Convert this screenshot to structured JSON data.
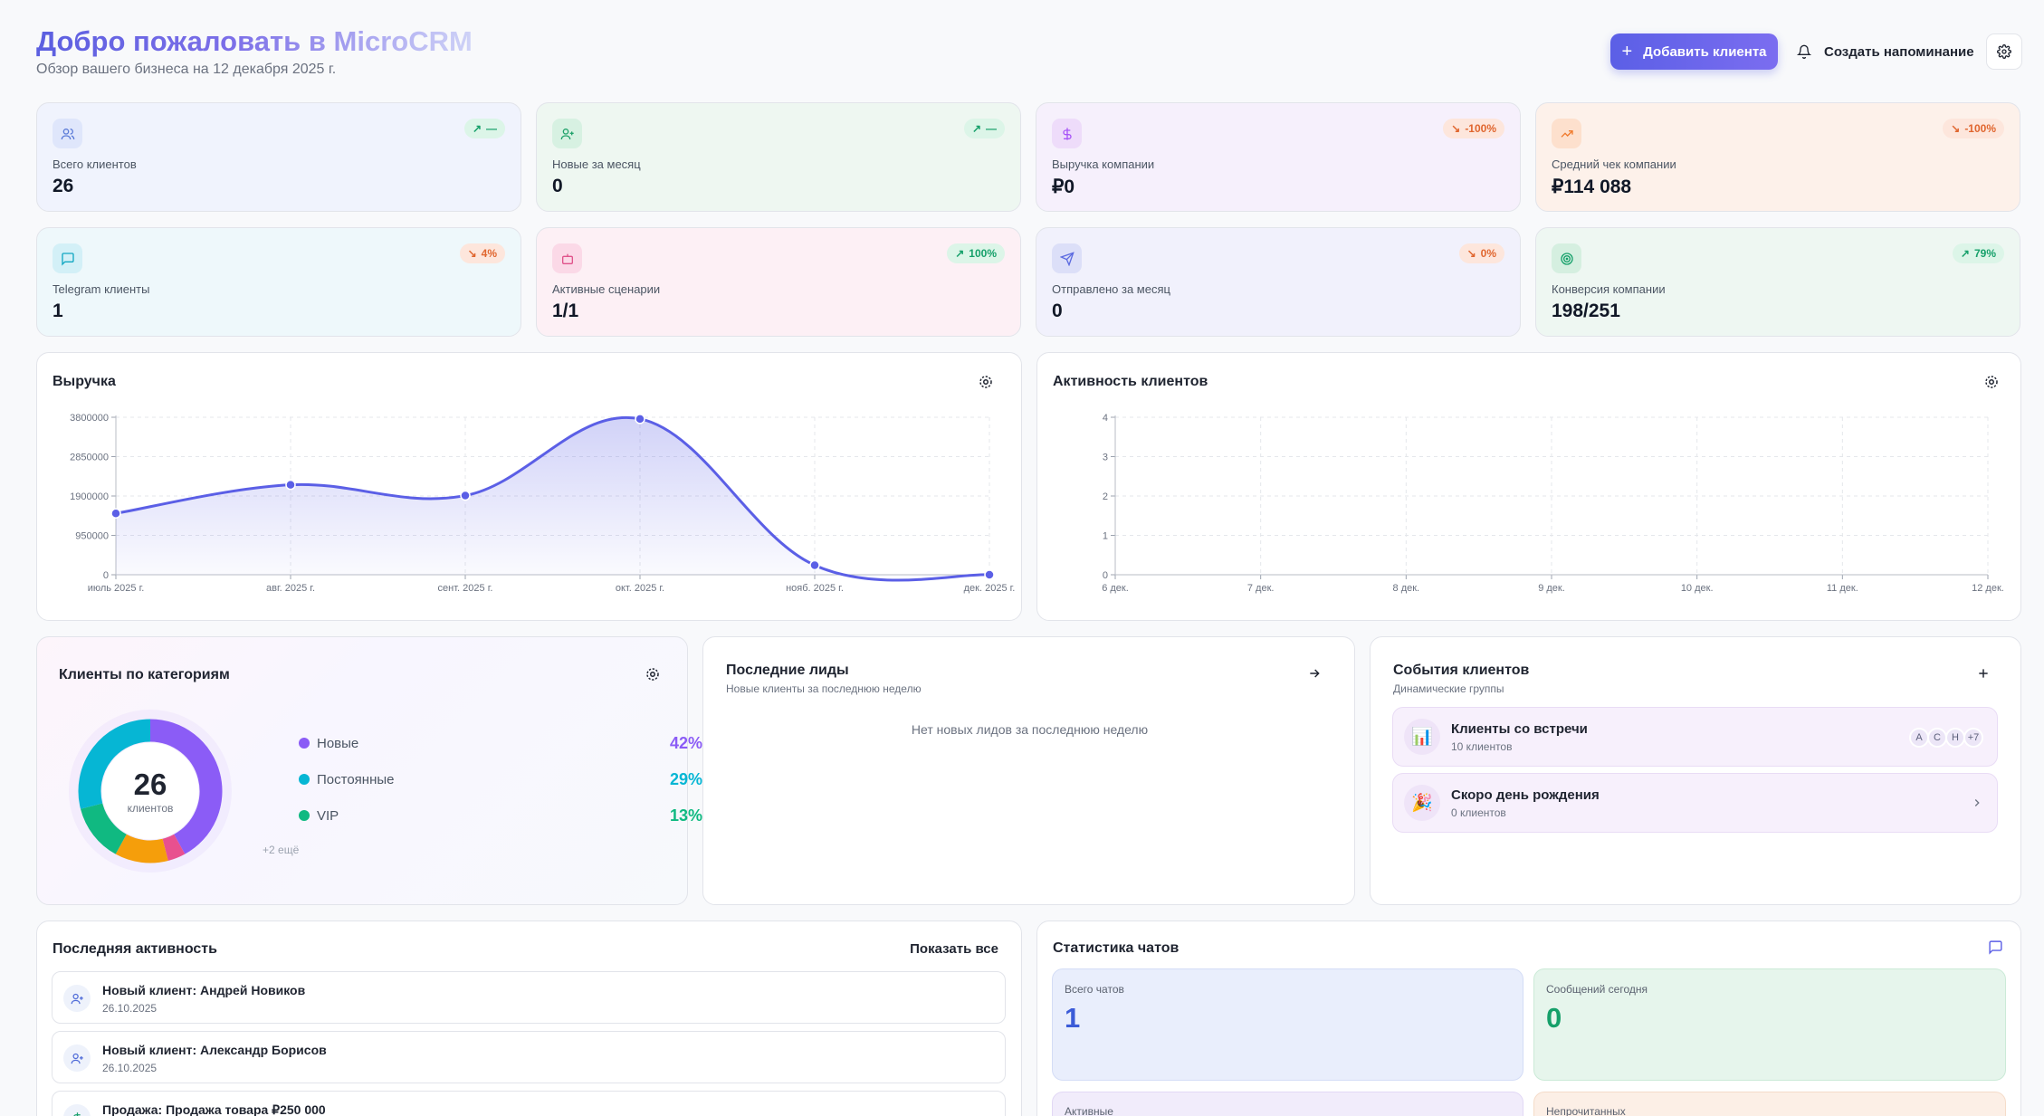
{
  "header": {
    "title": "Добро пожаловать в MicroCRM",
    "subtitle": "Обзор вашего бизнеса на 12 декабря 2025 г.",
    "add_client": "Добавить клиента",
    "reminder": "Создать напоминание"
  },
  "stats": [
    {
      "label": "Всего клиентов",
      "value": "26",
      "badge": "—",
      "trend": "up",
      "icon": "users-icon",
      "accent": "#5b7bd8"
    },
    {
      "label": "Новые за месяц",
      "value": "0",
      "badge": "—",
      "trend": "up",
      "icon": "user-plus-icon",
      "accent": "#20a26b"
    },
    {
      "label": "Выручка компании",
      "value": "₽0",
      "badge": "-100%",
      "trend": "down",
      "icon": "dollar-icon",
      "accent": "#a855f7"
    },
    {
      "label": "Средний чек компании",
      "value": "₽114 088",
      "badge": "-100%",
      "trend": "down",
      "icon": "trending-up-icon",
      "accent": "#f07a2c"
    },
    {
      "label": "Telegram клиенты",
      "value": "1",
      "badge": "4%",
      "trend": "down",
      "icon": "message-icon",
      "accent": "#12a7c2"
    },
    {
      "label": "Активные сценарии",
      "value": "1/1",
      "badge": "100%",
      "trend": "up",
      "icon": "bot-icon",
      "accent": "#e0528a"
    },
    {
      "label": "Отправлено за месяц",
      "value": "0",
      "badge": "0%",
      "trend": "down",
      "icon": "send-icon",
      "accent": "#5b6ae0"
    },
    {
      "label": "Конверсия компании",
      "value": "198/251",
      "badge": "79%",
      "trend": "up",
      "icon": "target-icon",
      "accent": "#16a06a"
    }
  ],
  "revenue_panel": {
    "title": "Выручка"
  },
  "activity_panel": {
    "title": "Активность клиентов"
  },
  "chart_data": [
    {
      "type": "area",
      "title": "Выручка",
      "categories": [
        "июль 2025 г.",
        "авг. 2025 г.",
        "сент. 2025 г.",
        "окт. 2025 г.",
        "нояб. 2025 г.",
        "дек. 2025 г."
      ],
      "values": [
        1480000,
        2170000,
        1910000,
        3760000,
        230000,
        0
      ],
      "yticks": [
        "0",
        "950000",
        "1900000",
        "2850000",
        "3800000"
      ],
      "ylim": [
        0,
        3800000
      ],
      "color": "#5b5fe6"
    },
    {
      "type": "line",
      "title": "Активность клиентов",
      "categories": [
        "6 дек.",
        "7 дек.",
        "8 дек.",
        "9 дек.",
        "10 дек.",
        "11 дек.",
        "12 дек."
      ],
      "values": [
        0,
        0,
        0,
        0,
        0,
        0,
        0
      ],
      "yticks": [
        "0",
        "1",
        "2",
        "3",
        "4"
      ],
      "ylim": [
        0,
        4
      ],
      "color": "#5b5fe6"
    },
    {
      "type": "pie",
      "title": "Клиенты по категориям",
      "total": "26",
      "total_label": "клиентов",
      "slices": [
        {
          "name": "Новые",
          "value": 42,
          "label": "42%",
          "color": "#8b5cf6"
        },
        {
          "name": "",
          "value": 4,
          "label": "",
          "color": "#e8508f"
        },
        {
          "name": "",
          "value": 12,
          "label": "",
          "color": "#f59e0b"
        },
        {
          "name": "VIP",
          "value": 13,
          "label": "13%",
          "color": "#10b981"
        },
        {
          "name": "Постоянные",
          "value": 29,
          "label": "29%",
          "color": "#06b6d4"
        }
      ],
      "more": "+2 ещё"
    }
  ],
  "categories_panel": {
    "title": "Клиенты по категориям"
  },
  "leads": {
    "title": "Последние лиды",
    "subtitle": "Новые клиенты за последнюю неделю",
    "empty": "Нет новых лидов за последнюю неделю"
  },
  "events": {
    "title": "События клиентов",
    "subtitle": "Динамические группы",
    "items": [
      {
        "title": "Клиенты со встречи",
        "sub": "10 клиентов",
        "emoji": "📊",
        "avatars": [
          "A",
          "C",
          "H"
        ],
        "more": "+7"
      },
      {
        "title": "Скоро день рождения",
        "sub": "0 клиентов",
        "emoji": "🎉"
      }
    ]
  },
  "recent": {
    "title": "Последняя активность",
    "show_all": "Показать все",
    "items": [
      {
        "title": "Новый клиент: Андрей Новиков",
        "date": "26.10.2025"
      },
      {
        "title": "Новый клиент: Александр Борисов",
        "date": "26.10.2025"
      },
      {
        "title": "Продажа: Продажа товара ₽250 000",
        "date": ""
      }
    ]
  },
  "chats": {
    "title": "Статистика чатов",
    "cards": [
      {
        "label": "Всего чатов",
        "value": "1",
        "color": "#3b5bd8"
      },
      {
        "label": "Сообщений сегодня",
        "value": "0",
        "color": "#16a06a"
      },
      {
        "label": "Активные",
        "value": "",
        "color": "#8b5cf6"
      },
      {
        "label": "Непрочитанных",
        "value": "",
        "color": "#f07a2c"
      }
    ]
  }
}
